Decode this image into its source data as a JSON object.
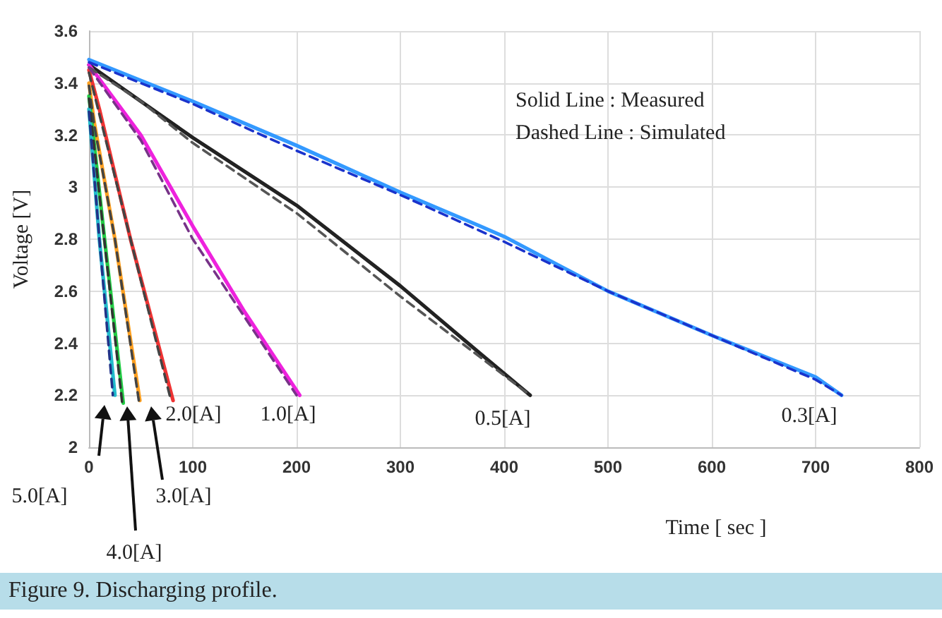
{
  "chart_data": {
    "type": "line",
    "title": "Figure 9. Discharging profile.",
    "xlabel": "Time [ sec ]",
    "ylabel": "Voltage [V]",
    "xlim": [
      0,
      800
    ],
    "xticks": [
      0,
      100,
      200,
      300,
      400,
      500,
      600,
      700,
      800
    ],
    "ylim": [
      2,
      3.6
    ],
    "yticks": [
      2,
      2.2,
      2.4,
      2.6,
      2.8,
      3,
      3.2,
      3.4,
      3.6
    ],
    "grid": true,
    "marker": "none",
    "annotations": [
      "Solid Line : Measured",
      "Dashed Line : Simulated",
      "2.0[A]",
      "1.0[A]",
      "0.5[A]",
      "0.3[A]",
      "5.0[A]",
      "4.0[A]",
      "3.0[A]"
    ],
    "series": [
      {
        "color": "#3399ff",
        "line_style": "solid",
        "x": [
          0,
          100,
          200,
          300,
          377,
          400,
          500,
          600,
          700,
          725
        ],
        "values": [
          3.49,
          3.33,
          3.16,
          2.98,
          2.85,
          2.81,
          2.6,
          2.43,
          2.27,
          2.2
        ]
      },
      {
        "color": "#1a33cc",
        "line_style": "dashed",
        "x": [
          0,
          100,
          200,
          300,
          400,
          500,
          600,
          700,
          725
        ],
        "values": [
          3.48,
          3.32,
          3.14,
          2.97,
          2.79,
          2.6,
          2.43,
          2.26,
          2.2
        ]
      },
      {
        "color": "#222222",
        "line_style": "solid",
        "x": [
          0,
          50,
          100,
          200,
          300,
          377,
          425
        ],
        "values": [
          3.47,
          3.33,
          3.19,
          2.93,
          2.62,
          2.36,
          2.2
        ]
      },
      {
        "color": "#555555",
        "line_style": "dashed",
        "x": [
          0,
          50,
          100,
          200,
          300,
          425
        ],
        "values": [
          3.46,
          3.33,
          3.17,
          2.9,
          2.58,
          2.2
        ]
      },
      {
        "color": "#ee22dd",
        "line_style": "solid",
        "x": [
          0,
          50,
          100,
          150,
          203
        ],
        "values": [
          3.47,
          3.2,
          2.85,
          2.52,
          2.2
        ]
      },
      {
        "color": "#773388",
        "line_style": "dashed",
        "x": [
          0,
          50,
          100,
          150,
          200
        ],
        "values": [
          3.46,
          3.18,
          2.8,
          2.5,
          2.2
        ]
      },
      {
        "color": "#ee3333",
        "line_style": "solid",
        "x": [
          0,
          10,
          40,
          81
        ],
        "values": [
          3.45,
          3.3,
          2.8,
          2.18
        ]
      },
      {
        "color": "#444444",
        "line_style": "dashed",
        "x": [
          0,
          10,
          40,
          79
        ],
        "values": [
          3.44,
          3.28,
          2.8,
          2.18
        ]
      },
      {
        "color": "#ffa020",
        "line_style": "solid",
        "x": [
          0,
          5,
          25,
          49
        ],
        "values": [
          3.4,
          3.25,
          2.8,
          2.18
        ]
      },
      {
        "color": "#444444",
        "line_style": "dashed",
        "x": [
          0,
          5,
          25,
          48
        ],
        "values": [
          3.39,
          3.24,
          2.8,
          2.18
        ]
      },
      {
        "color": "#22cc44",
        "line_style": "solid",
        "x": [
          0,
          15,
          33
        ],
        "values": [
          3.35,
          2.8,
          2.17
        ]
      },
      {
        "color": "#333333",
        "line_style": "dashed",
        "x": [
          0,
          15,
          32
        ],
        "values": [
          3.34,
          2.79,
          2.17
        ]
      },
      {
        "color": "#22bbcc",
        "line_style": "solid",
        "x": [
          0,
          10,
          25
        ],
        "values": [
          3.3,
          2.8,
          2.2
        ]
      },
      {
        "color": "#223388",
        "line_style": "dashed",
        "x": [
          0,
          10,
          23
        ],
        "values": [
          3.29,
          2.8,
          2.2
        ]
      }
    ]
  }
}
